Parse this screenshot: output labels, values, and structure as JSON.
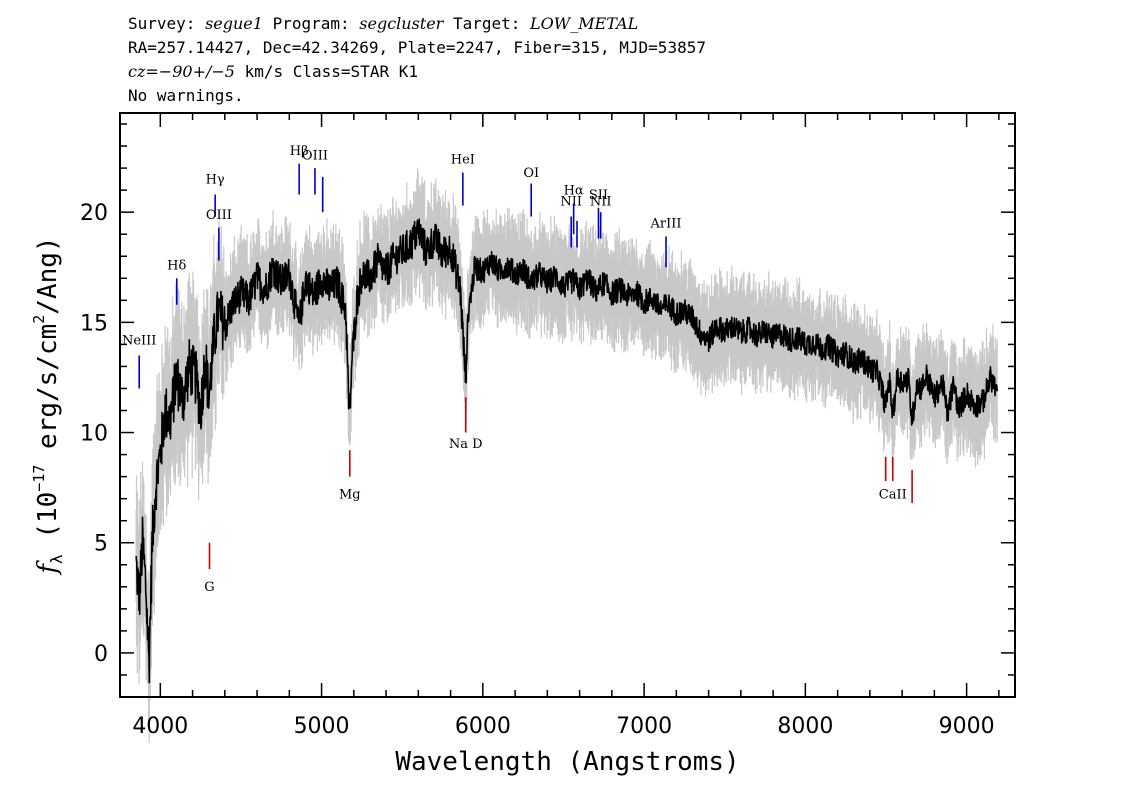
{
  "header": {
    "line1": {
      "survey_label": "Survey: ",
      "survey": "segue1",
      "program_label": " Program: ",
      "program": "segcluster",
      "target_label": " Target: ",
      "target": "LOW_METAL"
    },
    "line2": "RA=257.14427, Dec=42.34269, Plate=2247, Fiber=315, MJD=53857",
    "line3": {
      "cz_label": "cz=",
      "cz": "−90+/−5",
      "rest": " km/s Class=STAR K1"
    },
    "line4": "No warnings."
  },
  "chart_data": {
    "type": "line",
    "title": "",
    "xlabel": "Wavelength (Angstroms)",
    "ylabel": "fλ (10⁻¹⁷ erg/s/cm²/Ang)",
    "ylabel_parts": {
      "f": "f",
      "lambda": "λ",
      "pre": " (10",
      "exp1": "−17",
      "mid": " erg/s/cm",
      "exp2": "2",
      "post": "/Ang)"
    },
    "xlim": [
      3750,
      9300
    ],
    "ylim": [
      -2,
      24.5
    ],
    "xticks": [
      {
        "value": 4000,
        "label": "4000"
      },
      {
        "value": 5000,
        "label": "5000"
      },
      {
        "value": 6000,
        "label": "6000"
      },
      {
        "value": 7000,
        "label": "7000"
      },
      {
        "value": 8000,
        "label": "8000"
      },
      {
        "value": 9000,
        "label": "9000"
      }
    ],
    "yticks": [
      {
        "value": 0,
        "label": "0"
      },
      {
        "value": 5,
        "label": "5"
      },
      {
        "value": 10,
        "label": "10"
      },
      {
        "value": 15,
        "label": "15"
      },
      {
        "value": 20,
        "label": "20"
      }
    ],
    "series": [
      {
        "role": "flux",
        "color": "#000000",
        "points": [
          [
            3850,
            4
          ],
          [
            3870,
            2.5
          ],
          [
            3890,
            5
          ],
          [
            3910,
            3
          ],
          [
            3930,
            -0.5
          ],
          [
            3950,
            5
          ],
          [
            3970,
            7.5
          ],
          [
            4000,
            9
          ],
          [
            4030,
            11
          ],
          [
            4060,
            10.5
          ],
          [
            4100,
            12.5
          ],
          [
            4140,
            11.5
          ],
          [
            4180,
            13
          ],
          [
            4220,
            12.5
          ],
          [
            4250,
            11
          ],
          [
            4280,
            13.5
          ],
          [
            4300,
            11.5
          ],
          [
            4330,
            14
          ],
          [
            4360,
            15.5
          ],
          [
            4400,
            14.8
          ],
          [
            4450,
            15.8
          ],
          [
            4500,
            16.3
          ],
          [
            4550,
            16
          ],
          [
            4600,
            17
          ],
          [
            4650,
            16.5
          ],
          [
            4700,
            17.5
          ],
          [
            4750,
            16.8
          ],
          [
            4800,
            17.2
          ],
          [
            4860,
            14.8
          ],
          [
            4900,
            17
          ],
          [
            4950,
            16.2
          ],
          [
            5000,
            17
          ],
          [
            5050,
            16.5
          ],
          [
            5100,
            16.8
          ],
          [
            5150,
            15.5
          ],
          [
            5172,
            10.5
          ],
          [
            5190,
            13.5
          ],
          [
            5220,
            16
          ],
          [
            5250,
            17.2
          ],
          [
            5300,
            17
          ],
          [
            5350,
            17.8
          ],
          [
            5400,
            17.3
          ],
          [
            5450,
            17.9
          ],
          [
            5500,
            18.2
          ],
          [
            5560,
            18.6
          ],
          [
            5600,
            19.2
          ],
          [
            5650,
            18.2
          ],
          [
            5700,
            18.8
          ],
          [
            5750,
            18.1
          ],
          [
            5800,
            18.4
          ],
          [
            5860,
            16.5
          ],
          [
            5880,
            14
          ],
          [
            5893,
            12.5
          ],
          [
            5910,
            15.5
          ],
          [
            5950,
            17.5
          ],
          [
            6000,
            17.3
          ],
          [
            6050,
            17.8
          ],
          [
            6100,
            17.3
          ],
          [
            6150,
            17.6
          ],
          [
            6200,
            17.2
          ],
          [
            6250,
            17.4
          ],
          [
            6300,
            16.8
          ],
          [
            6350,
            17.2
          ],
          [
            6400,
            16.8
          ],
          [
            6450,
            17.1
          ],
          [
            6500,
            16.6
          ],
          [
            6563,
            16.9
          ],
          [
            6600,
            16.5
          ],
          [
            6650,
            17
          ],
          [
            6700,
            16.4
          ],
          [
            6750,
            16.8
          ],
          [
            6800,
            16.3
          ],
          [
            6850,
            16.5
          ],
          [
            6900,
            16.2
          ],
          [
            6950,
            16.4
          ],
          [
            7000,
            15.9
          ],
          [
            7050,
            16.1
          ],
          [
            7100,
            15.6
          ],
          [
            7150,
            15.8
          ],
          [
            7200,
            15.4
          ],
          [
            7250,
            15.5
          ],
          [
            7300,
            15.2
          ],
          [
            7350,
            14.5
          ],
          [
            7400,
            14.2
          ],
          [
            7450,
            14.8
          ],
          [
            7500,
            14.6
          ],
          [
            7550,
            14.8
          ],
          [
            7600,
            14.5
          ],
          [
            7650,
            14.7
          ],
          [
            7700,
            14.4
          ],
          [
            7750,
            14.6
          ],
          [
            7800,
            14.3
          ],
          [
            7850,
            14.5
          ],
          [
            7900,
            14.2
          ],
          [
            7950,
            14.3
          ],
          [
            8000,
            14
          ],
          [
            8050,
            14.1
          ],
          [
            8100,
            13.8
          ],
          [
            8150,
            13.9
          ],
          [
            8200,
            13.5
          ],
          [
            8250,
            13.6
          ],
          [
            8300,
            13.2
          ],
          [
            8350,
            13.3
          ],
          [
            8400,
            12.9
          ],
          [
            8450,
            12.7
          ],
          [
            8498,
            11.2
          ],
          [
            8520,
            12.4
          ],
          [
            8542,
            10.8
          ],
          [
            8570,
            12.5
          ],
          [
            8600,
            12.3
          ],
          [
            8640,
            12.4
          ],
          [
            8662,
            10.5
          ],
          [
            8690,
            12.2
          ],
          [
            8720,
            12
          ],
          [
            8750,
            12.6
          ],
          [
            8800,
            11.6
          ],
          [
            8850,
            12.3
          ],
          [
            8880,
            10.8
          ],
          [
            8900,
            11.5
          ],
          [
            8920,
            12.2
          ],
          [
            8950,
            11
          ],
          [
            9000,
            11.8
          ],
          [
            9050,
            11.2
          ],
          [
            9100,
            11.4
          ],
          [
            9150,
            12.5
          ],
          [
            9190,
            11.8
          ]
        ]
      }
    ],
    "lines": [
      {
        "label": "NeIII",
        "x": 3869,
        "type": "emission",
        "y1": 12.0,
        "y2": 13.5,
        "label_y": 14.0,
        "color": "#0000cc"
      },
      {
        "label": "Hδ",
        "x": 4102,
        "type": "emission",
        "y1": 15.8,
        "y2": 17.0,
        "label_y": 17.4,
        "color": "#0000cc"
      },
      {
        "label": "Hγ",
        "x": 4340,
        "type": "emission",
        "y1": 19.8,
        "y2": 20.8,
        "label_y": 21.3,
        "color": "#0000cc"
      },
      {
        "label": "OIII",
        "x": 4363,
        "type": "emission",
        "y1": 17.8,
        "y2": 19.3,
        "label_y": 19.7,
        "color": "#0000cc"
      },
      {
        "label": "Hβ",
        "x": 4861,
        "type": "emission",
        "y1": 20.8,
        "y2": 22.2,
        "label_y": 22.6,
        "color": "#0000cc"
      },
      {
        "label": "OIII",
        "x": 4959,
        "type": "emission",
        "y1": 20.8,
        "y2": 22.0,
        "label_y": 22.4,
        "color": "#0000cc"
      },
      {
        "label": "OIII",
        "x": 5007,
        "type": "emission",
        "y1": 20.0,
        "y2": 21.6,
        "label_y": 22.4,
        "color": "#0000cc",
        "hide_label": true
      },
      {
        "label": "HeI",
        "x": 5876,
        "type": "emission",
        "y1": 20.3,
        "y2": 21.8,
        "label_y": 22.2,
        "color": "#0000cc"
      },
      {
        "label": "OI",
        "x": 6300,
        "type": "emission",
        "y1": 19.8,
        "y2": 21.3,
        "label_y": 21.6,
        "color": "#0000cc"
      },
      {
        "label": "NII",
        "x": 6548,
        "type": "emission",
        "y1": 18.4,
        "y2": 19.8,
        "label_y": 20.3,
        "color": "#0000cc"
      },
      {
        "label": "Hα",
        "x": 6563,
        "type": "emission",
        "y1": 19.0,
        "y2": 20.4,
        "label_y": 20.8,
        "color": "#0000cc"
      },
      {
        "label": "NII",
        "x": 6584,
        "type": "emission",
        "y1": 18.4,
        "y2": 19.6,
        "label_y": 20.3,
        "color": "#0000cc",
        "hide_label": true
      },
      {
        "label": "SII",
        "x": 6717,
        "type": "emission",
        "y1": 18.8,
        "y2": 20.2,
        "label_y": 20.6,
        "color": "#0000cc"
      },
      {
        "label": "NII",
        "x": 6731,
        "type": "emission",
        "y1": 18.8,
        "y2": 20.0,
        "label_y": 20.3,
        "color": "#0000cc"
      },
      {
        "label": "ArIII",
        "x": 7136,
        "type": "emission",
        "y1": 17.5,
        "y2": 18.9,
        "label_y": 19.3,
        "color": "#0000cc"
      },
      {
        "label": "G",
        "x": 4305,
        "type": "absorption",
        "y1": 3.8,
        "y2": 5.0,
        "label_y": 2.8,
        "color": "#cc0000"
      },
      {
        "label": "Mg",
        "x": 5175,
        "type": "absorption",
        "y1": 8.0,
        "y2": 9.2,
        "label_y": 7.0,
        "color": "#cc0000"
      },
      {
        "label": "Na D",
        "x": 5894,
        "type": "absorption",
        "y1": 10.0,
        "y2": 11.6,
        "label_y": 9.3,
        "color": "#cc0000"
      },
      {
        "label": "CaII",
        "x": 8498,
        "type": "absorption",
        "y1": 7.8,
        "y2": 8.9,
        "label_y": 7.0,
        "color": "#cc0000",
        "hide_label": true
      },
      {
        "label": "CaII",
        "x": 8542,
        "type": "absorption",
        "y1": 7.8,
        "y2": 8.9,
        "label_y": 7.0,
        "color": "#cc0000"
      },
      {
        "label": "CaII",
        "x": 8662,
        "type": "absorption",
        "y1": 6.8,
        "y2": 8.3,
        "label_y": 7.0,
        "color": "#cc0000",
        "hide_label": true
      }
    ],
    "colors": {
      "flux": "#000000",
      "noise_band": "#c8c8c8",
      "emission": "#0000cc",
      "absorption": "#cc0000"
    },
    "grid": false,
    "legend": "none"
  }
}
